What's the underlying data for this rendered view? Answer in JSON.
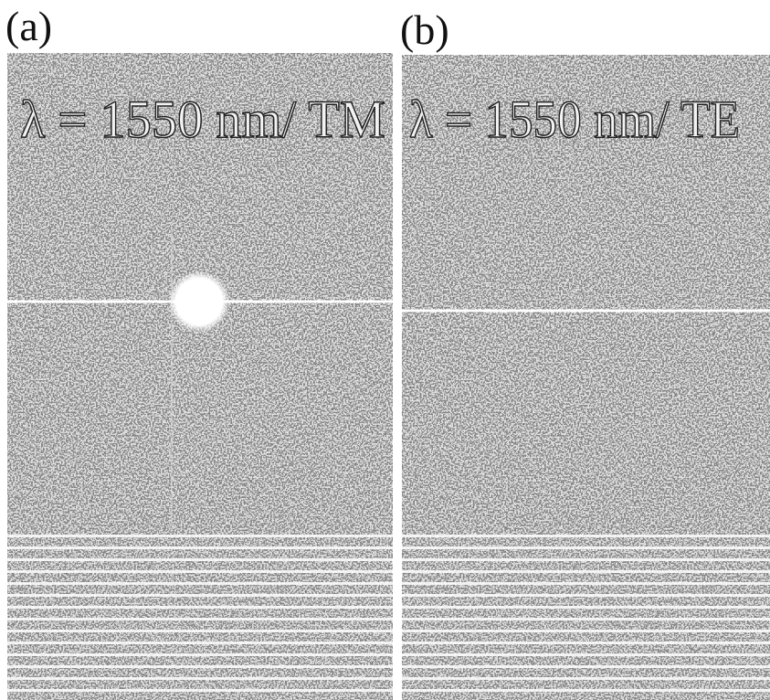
{
  "panels": [
    {
      "label": "(a)",
      "caption": "λ = 1550 nm/ TM"
    },
    {
      "label": "(b)",
      "caption": "λ = 1550 nm/ TE"
    }
  ]
}
